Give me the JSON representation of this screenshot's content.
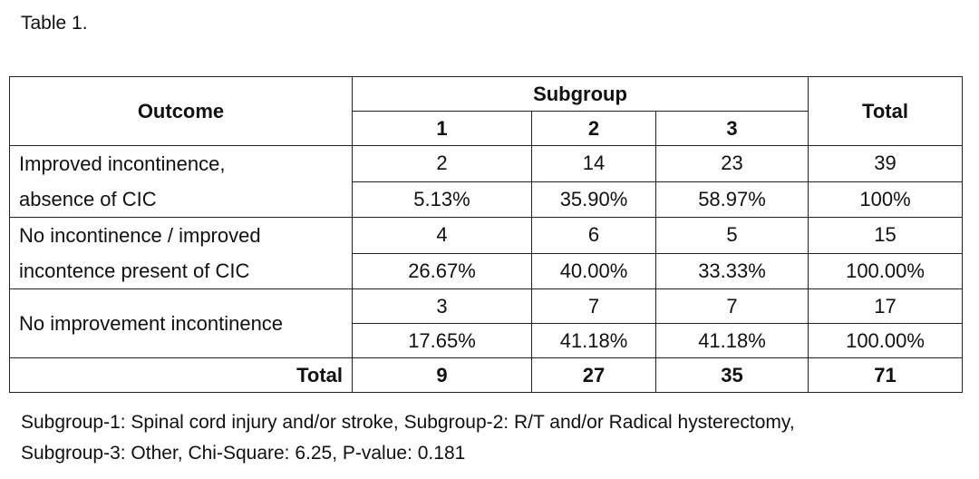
{
  "caption": "Table 1.",
  "table": {
    "header": {
      "outcome": "Outcome",
      "subgroup": "Subgroup",
      "total": "Total",
      "subgroups": [
        "1",
        "2",
        "3"
      ]
    },
    "rows": [
      {
        "label_line1": "Improved incontinence,",
        "label_line2": "absence of CIC",
        "counts": [
          "2",
          "14",
          "23"
        ],
        "count_total": "39",
        "percents": [
          "5.13%",
          "35.90%",
          "58.97%"
        ],
        "percent_total": "100%"
      },
      {
        "label_line1": "No incontinence / improved",
        "label_line2": "incontence present of CIC",
        "counts": [
          "4",
          "6",
          "5"
        ],
        "count_total": "15",
        "percents": [
          "26.67%",
          "40.00%",
          "33.33%"
        ],
        "percent_total": "100.00%"
      },
      {
        "label": "No improvement incontinence",
        "counts": [
          "3",
          "7",
          "7"
        ],
        "count_total": "17",
        "percents": [
          "17.65%",
          "41.18%",
          "41.18%"
        ],
        "percent_total": "100.00%"
      }
    ],
    "totals": {
      "label": "Total",
      "values": [
        "9",
        "27",
        "35"
      ],
      "grand_total": "71"
    }
  },
  "footnote": {
    "line1": "Subgroup-1: Spinal cord injury and/or stroke, Subgroup-2: R/T and/or Radical hysterectomy,",
    "line2": "Subgroup-3: Other, Chi-Square: 6.25, P-value: 0.181"
  }
}
